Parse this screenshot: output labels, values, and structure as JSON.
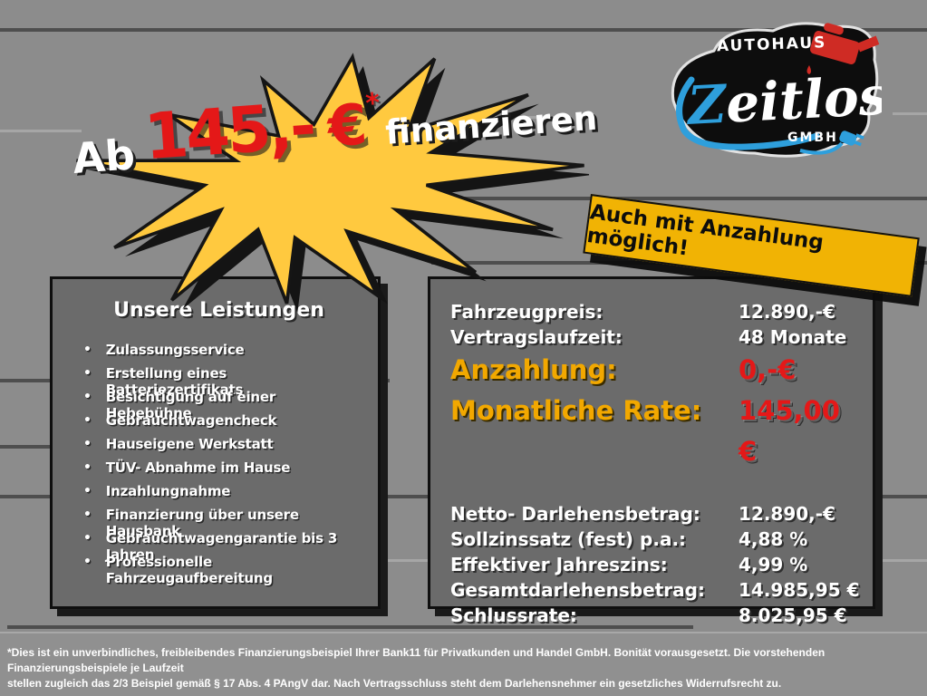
{
  "promo": {
    "prefix": "Ab",
    "amount": "145,-",
    "currency": "€",
    "asterisk": "*",
    "suffix": "finanzieren"
  },
  "logo": {
    "top": "AUTOHAUS",
    "name_initial": "Z",
    "name_rest": "eitlos",
    "bottom": "GMBH"
  },
  "banner": {
    "text": "Auch mit Anzahlung möglich!"
  },
  "services": {
    "title": "Unsere Leistungen",
    "bullet_icon": "•",
    "items": [
      "Zulassungsservice",
      "Erstellung eines Batteriezertifikats",
      "Besichtigung auf einer Hebebühne",
      "Gebrauchtwagencheck",
      "Hauseigene Werkstatt",
      "TÜV- Abnahme im Hause",
      "Inzahlungnahme",
      "Finanzierung über unsere Hausbank",
      "Gebrauchtwagengarantie bis 3 Jahren",
      "Professionelle Fahrzeugaufbereitung"
    ]
  },
  "finance": {
    "rows": [
      {
        "label": "Fahrzeugpreis:",
        "value": "12.890,-€",
        "emphasis": false,
        "gap_before": false
      },
      {
        "label": "Vertragslaufzeit:",
        "value": "48 Monate",
        "emphasis": false,
        "gap_before": false
      },
      {
        "label": "Anzahlung:",
        "value": "0,-€",
        "emphasis": true,
        "gap_before": false
      },
      {
        "label": "Monatliche Rate:",
        "value": "145,00 €",
        "emphasis": true,
        "gap_before": false
      },
      {
        "label": "Netto- Darlehensbetrag:",
        "value": "12.890,-€",
        "emphasis": false,
        "gap_before": true
      },
      {
        "label": "Sollzinssatz (fest) p.a.:",
        "value": "4,88 %",
        "emphasis": false,
        "gap_before": false
      },
      {
        "label": "Effektiver Jahreszins:",
        "value": "4,99 %",
        "emphasis": false,
        "gap_before": false
      },
      {
        "label": "Gesamtdarlehensbetrag:",
        "value": "14.985,95 €",
        "emphasis": false,
        "gap_before": false
      },
      {
        "label": "Schlussrate:",
        "value": "8.025,95 €",
        "emphasis": false,
        "gap_before": false
      }
    ]
  },
  "disclaimer": {
    "line1": "*Dies ist ein unverbindliches, freibleibendes Finanzierungsbeispiel Ihrer Bank11 für Privatkunden und Handel GmbH. Bonität vorausgesetzt. Die vorstehenden Finanzierungsbeispiele je Laufzeit",
    "line2": "stellen zugleich das 2/3 Beispiel gemäß § 17 Abs. 4 PAngV dar. Nach Vertragsschluss steht dem Darlehensnehmer ein gesetzliches Widerrufsrecht zu."
  },
  "colors": {
    "bg": "#8C8C8C",
    "box": "#6B6B6B",
    "yellow": "#FFC93F",
    "gold-banner": "#F1B304",
    "gold-label": "#F2A800",
    "red": "#E41818",
    "blue": "#2E9FDC",
    "logo-red": "#CF2B24"
  }
}
